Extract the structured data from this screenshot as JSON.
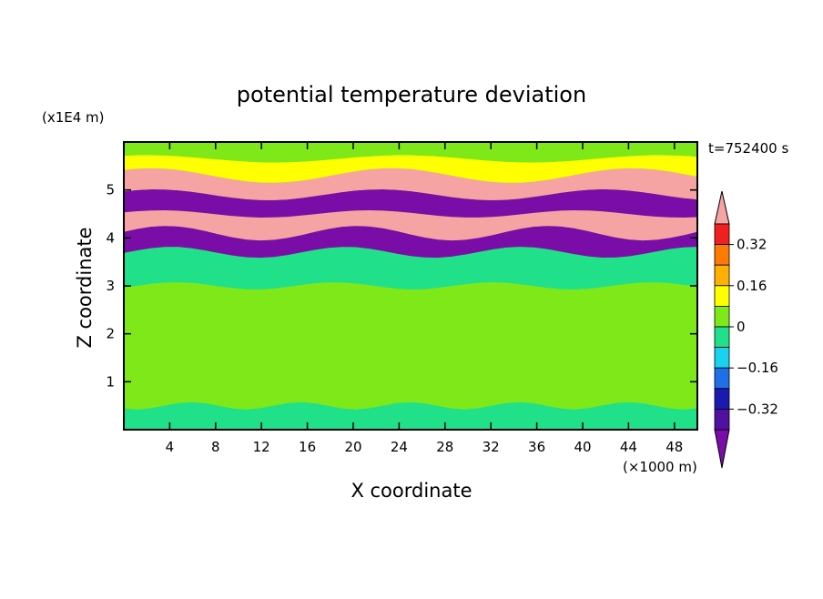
{
  "chart_data": {
    "type": "heatmap",
    "title": "potential temperature deviation",
    "xlabel": "X coordinate",
    "ylabel": "Z coordinate",
    "x_unit": "(×1000 m)",
    "y_unit": "(x1E4 m)",
    "time_label": "t=752400 s",
    "xlim": [
      0,
      50
    ],
    "ylim": [
      0,
      6
    ],
    "x_ticks": [
      4,
      8,
      12,
      16,
      20,
      24,
      28,
      32,
      36,
      40,
      44,
      48
    ],
    "y_ticks": [
      1,
      2,
      3,
      4,
      5
    ],
    "colorbar": {
      "levels": [
        -0.48,
        -0.4,
        -0.32,
        -0.24,
        -0.16,
        -0.08,
        0,
        0.08,
        0.16,
        0.24,
        0.32,
        0.4,
        0.48
      ],
      "tick_values": [
        -0.32,
        -0.16,
        0,
        0.16,
        0.32
      ],
      "tick_labels": [
        "−0.32",
        "−0.16",
        "0",
        "0.16",
        "0.32"
      ],
      "colors": [
        "#7a0da8",
        "#5010a0",
        "#1a1ab0",
        "#1f6fe6",
        "#19d2f0",
        "#20e08a",
        "#7fe819",
        "#ffff00",
        "#ffb000",
        "#ff7a00",
        "#f02020",
        "#f5a3a3"
      ],
      "extend": "both"
    },
    "bands": [
      {
        "z": 0.25,
        "value": -0.05
      },
      {
        "z": 0.75,
        "value": 0.03
      },
      {
        "z": 1.5,
        "value": 0.02
      },
      {
        "z": 2.5,
        "value": 0.0
      },
      {
        "z": 3.5,
        "value": -0.02
      },
      {
        "z": 3.9,
        "value": -0.45
      },
      {
        "z": 4.3,
        "value": 0.45
      },
      {
        "z": 4.7,
        "value": -0.45
      },
      {
        "z": 5.1,
        "value": 0.45
      },
      {
        "z": 5.5,
        "value": 0.08
      },
      {
        "z": 5.8,
        "value": 0.02
      }
    ]
  }
}
